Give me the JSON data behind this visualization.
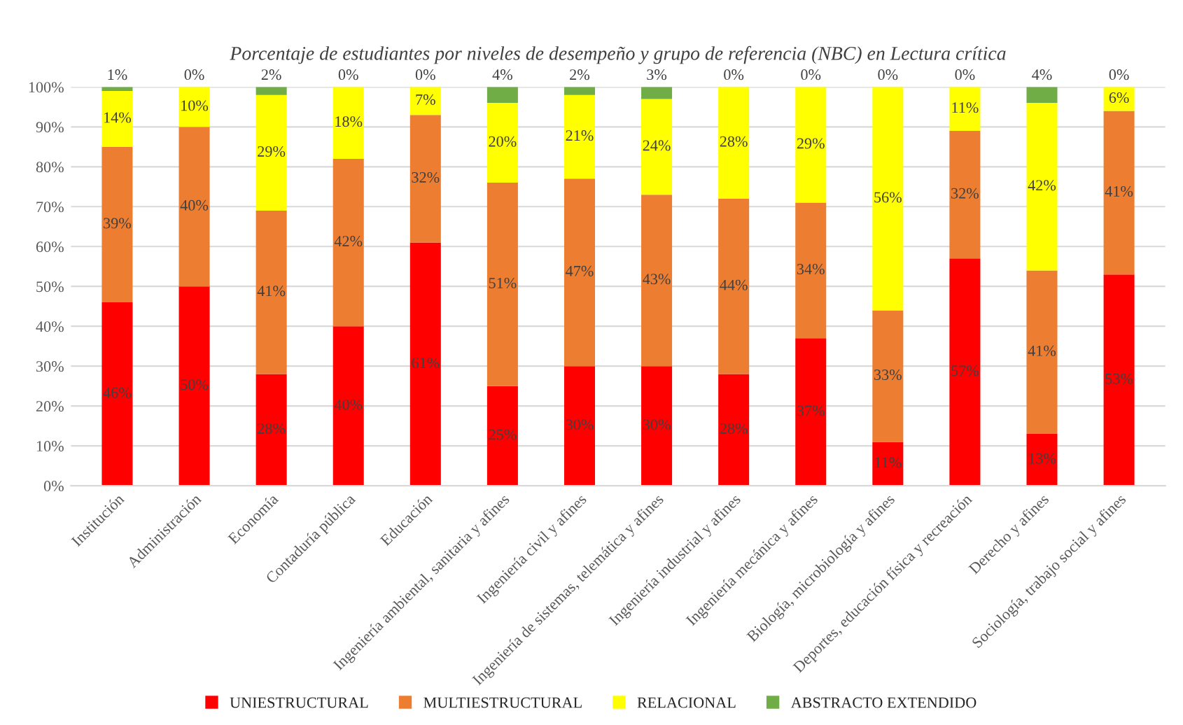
{
  "chart_data": {
    "type": "bar",
    "stacked": true,
    "title": "Porcentaje de estudiantes por niveles de desempeño y grupo de referencia (NBC) en Lectura crítica",
    "categories": [
      "Institución",
      "Administración",
      "Economía",
      "Contaduría pública",
      "Educación",
      "Ingeniería ambiental, sanitaria y afines",
      "Ingeniería civil y afines",
      "Ingeniería de sistemas, telemática y afines",
      "Ingeniería industrial y afines",
      "Ingeniería mecánica y afines",
      "Biología, microbiología y afines",
      "Deportes, educación física y recreación",
      "Derecho y afines",
      "Sociología, trabajo social y afines"
    ],
    "series": [
      {
        "name": "UNIESTRUCTURAL",
        "color": "#ff0000",
        "values": [
          46,
          50,
          28,
          40,
          61,
          25,
          30,
          30,
          28,
          37,
          11,
          57,
          13,
          53
        ],
        "value_labels": [
          "46%",
          "50%",
          "28%",
          "40%",
          "61%",
          "25%",
          "30%",
          "30%",
          "28%",
          "37%",
          "11%",
          "57%",
          "13%",
          "53%"
        ]
      },
      {
        "name": "MULTIESTRUCTURAL",
        "color": "#ed7d31",
        "values": [
          39,
          40,
          41,
          42,
          32,
          51,
          47,
          43,
          44,
          34,
          33,
          32,
          41,
          41
        ],
        "value_labels": [
          "39%",
          "40%",
          "41%",
          "42%",
          "32%",
          "51%",
          "47%",
          "43%",
          "44%",
          "34%",
          "33%",
          "32%",
          "41%",
          "41%"
        ]
      },
      {
        "name": "RELACIONAL",
        "color": "#ffff00",
        "values": [
          14,
          10,
          29,
          18,
          7,
          20,
          21,
          24,
          28,
          29,
          56,
          11,
          42,
          6
        ],
        "value_labels": [
          "14%",
          "10%",
          "29%",
          "18%",
          "7%",
          "20%",
          "21%",
          "24%",
          "28%",
          "29%",
          "56%",
          "11%",
          "42%",
          "6%"
        ]
      },
      {
        "name": "ABSTRACTO EXTENDIDO",
        "color": "#70ad47",
        "values": [
          1,
          0,
          2,
          0,
          0,
          4,
          2,
          3,
          0,
          0,
          0,
          0,
          4,
          0
        ],
        "value_labels": [
          "1%",
          "0%",
          "2%",
          "0%",
          "0%",
          "4%",
          "2%",
          "3%",
          "0%",
          "0%",
          "0%",
          "0%",
          "4%",
          "0%"
        ]
      }
    ],
    "ylim": [
      0,
      100
    ],
    "yticks": [
      {
        "value": 0,
        "label": "0%"
      },
      {
        "value": 10,
        "label": "10%"
      },
      {
        "value": 20,
        "label": "20%"
      },
      {
        "value": 30,
        "label": "30%"
      },
      {
        "value": 40,
        "label": "40%"
      },
      {
        "value": 50,
        "label": "50%"
      },
      {
        "value": 60,
        "label": "60%"
      },
      {
        "value": 70,
        "label": "70%"
      },
      {
        "value": 80,
        "label": "80%"
      },
      {
        "value": 90,
        "label": "90%"
      },
      {
        "value": 100,
        "label": "100%"
      }
    ],
    "grid": "y",
    "legend": "bottom"
  }
}
